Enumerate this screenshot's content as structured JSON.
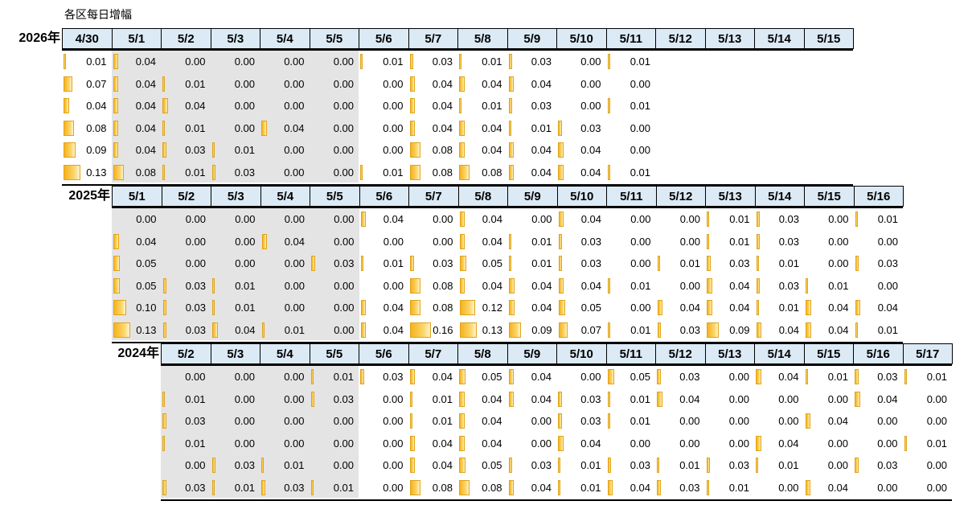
{
  "chart_data": {
    "type": "table",
    "title": "各区每日增幅",
    "colors": {
      "header_bg": "#dbeaf5",
      "bar": "#f6b21f",
      "holiday_shade": "#e4e4e4"
    },
    "holiday_columns": [
      "5/1",
      "5/2",
      "5/3",
      "5/4",
      "5/5"
    ],
    "years": [
      {
        "label": "2026年",
        "dates": [
          "4/30",
          "5/1",
          "5/2",
          "5/3",
          "5/4",
          "5/5",
          "5/6",
          "5/7",
          "5/8",
          "5/9",
          "5/10",
          "5/11",
          "5/12",
          "5/13",
          "5/14",
          "5/15"
        ],
        "rows": [
          [
            "0.01",
            "0.04",
            "0.00",
            "0.00",
            "0.00",
            "0.00",
            "0.01",
            "0.03",
            "0.01",
            "0.03",
            "0.00",
            "0.01"
          ],
          [
            "0.07",
            "0.04",
            "0.01",
            "0.00",
            "0.00",
            "0.00",
            "0.00",
            "0.04",
            "0.04",
            "0.04",
            "0.00",
            "0.00"
          ],
          [
            "0.04",
            "0.04",
            "0.04",
            "0.00",
            "0.00",
            "0.00",
            "0.00",
            "0.04",
            "0.01",
            "0.03",
            "0.00",
            "0.01"
          ],
          [
            "0.08",
            "0.04",
            "0.01",
            "0.00",
            "0.04",
            "0.00",
            "0.00",
            "0.04",
            "0.04",
            "0.01",
            "0.03",
            "0.00"
          ],
          [
            "0.09",
            "0.04",
            "0.03",
            "0.01",
            "0.00",
            "0.00",
            "0.00",
            "0.08",
            "0.04",
            "0.04",
            "0.04",
            "0.00"
          ],
          [
            "0.13",
            "0.08",
            "0.01",
            "0.03",
            "0.00",
            "0.00",
            "0.01",
            "0.08",
            "0.08",
            "0.04",
            "0.04",
            "0.01"
          ]
        ]
      },
      {
        "label": "2025年",
        "dates": [
          "5/1",
          "5/2",
          "5/3",
          "5/4",
          "5/5",
          "5/6",
          "5/7",
          "5/8",
          "5/9",
          "5/10",
          "5/11",
          "5/12",
          "5/13",
          "5/14",
          "5/15",
          "5/16"
        ],
        "rows": [
          [
            "0.00",
            "0.00",
            "0.00",
            "0.00",
            "0.00",
            "0.04",
            "0.00",
            "0.04",
            "0.00",
            "0.04",
            "0.00",
            "0.00",
            "0.01",
            "0.03",
            "0.00",
            "0.01"
          ],
          [
            "0.04",
            "0.00",
            "0.00",
            "0.04",
            "0.00",
            "0.00",
            "0.00",
            "0.04",
            "0.01",
            "0.03",
            "0.00",
            "0.00",
            "0.01",
            "0.03",
            "0.00",
            "0.00"
          ],
          [
            "0.05",
            "0.00",
            "0.00",
            "0.00",
            "0.03",
            "0.01",
            "0.03",
            "0.05",
            "0.01",
            "0.03",
            "0.00",
            "0.01",
            "0.03",
            "0.01",
            "0.00",
            "0.03"
          ],
          [
            "0.05",
            "0.03",
            "0.01",
            "0.00",
            "0.00",
            "0.00",
            "0.08",
            "0.04",
            "0.04",
            "0.04",
            "0.01",
            "0.00",
            "0.04",
            "0.03",
            "0.01",
            "0.00"
          ],
          [
            "0.10",
            "0.03",
            "0.01",
            "0.00",
            "0.00",
            "0.04",
            "0.08",
            "0.12",
            "0.04",
            "0.05",
            "0.00",
            "0.04",
            "0.04",
            "0.01",
            "0.04",
            "0.04"
          ],
          [
            "0.13",
            "0.03",
            "0.04",
            "0.01",
            "0.00",
            "0.04",
            "0.16",
            "0.13",
            "0.09",
            "0.07",
            "0.01",
            "0.03",
            "0.09",
            "0.04",
            "0.04",
            "0.01"
          ]
        ]
      },
      {
        "label": "2024年",
        "dates": [
          "5/2",
          "5/3",
          "5/4",
          "5/5",
          "5/6",
          "5/7",
          "5/8",
          "5/9",
          "5/10",
          "5/11",
          "5/12",
          "5/13",
          "5/14",
          "5/15",
          "5/16",
          "5/17"
        ],
        "rows": [
          [
            "0.00",
            "0.00",
            "0.00",
            "0.01",
            "0.03",
            "0.04",
            "0.05",
            "0.04",
            "0.00",
            "0.05",
            "0.03",
            "0.00",
            "0.04",
            "0.01",
            "0.03",
            "0.01"
          ],
          [
            "0.01",
            "0.00",
            "0.00",
            "0.03",
            "0.00",
            "0.01",
            "0.04",
            "0.04",
            "0.03",
            "0.01",
            "0.04",
            "0.00",
            "0.00",
            "0.00",
            "0.04",
            "0.00"
          ],
          [
            "0.03",
            "0.00",
            "0.00",
            "0.00",
            "0.00",
            "0.01",
            "0.04",
            "0.00",
            "0.03",
            "0.01",
            "0.00",
            "0.00",
            "0.00",
            "0.04",
            "0.00",
            "0.00"
          ],
          [
            "0.01",
            "0.00",
            "0.00",
            "0.00",
            "0.00",
            "0.04",
            "0.04",
            "0.00",
            "0.04",
            "0.00",
            "0.00",
            "0.00",
            "0.04",
            "0.00",
            "0.00",
            "0.01"
          ],
          [
            "0.00",
            "0.03",
            "0.01",
            "0.00",
            "0.00",
            "0.04",
            "0.05",
            "0.03",
            "0.01",
            "0.03",
            "0.01",
            "0.03",
            "0.01",
            "0.00",
            "0.03",
            "0.00"
          ],
          [
            "0.03",
            "0.01",
            "0.03",
            "0.01",
            "0.00",
            "0.08",
            "0.08",
            "0.04",
            "0.01",
            "0.04",
            "0.03",
            "0.01",
            "0.00",
            "0.04",
            "0.00",
            "0.00"
          ]
        ]
      }
    ]
  }
}
